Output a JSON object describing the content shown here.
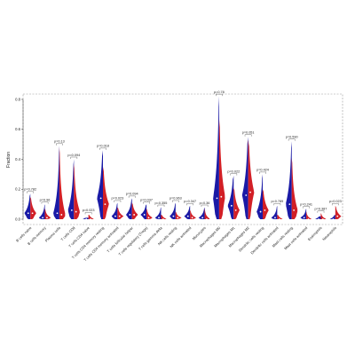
{
  "chart_data": {
    "type": "violin",
    "ylabel": "Fraction",
    "ylim": [
      0,
      0.8
    ],
    "yticks": [
      "0.0",
      "0.2",
      "0.4",
      "0.6",
      "0.8"
    ],
    "colors": {
      "group_a": "#1a1aa6",
      "group_b": "#d21f26"
    },
    "categories": [
      "B cells naive",
      "B cells memory",
      "Plasma cells",
      "T cells CD8",
      "T cells CD4 naive",
      "T cells CD4 memory resting",
      "T cells CD4 memory activated",
      "T cells follicular helper",
      "T cells regulatory (Tregs)",
      "T cells gamma delta",
      "NK cells resting",
      "NK cells activated",
      "Monocytes",
      "Macrophages M0",
      "Macrophages M1",
      "Macrophages M2",
      "Dendritic cells resting",
      "Dendritic cells activated",
      "Mast cells resting",
      "Mast cells activated",
      "Eosinophils",
      "Neutrophils"
    ],
    "pvalues": [
      "p=0.782",
      "p=0.96",
      "p=0.13",
      "p=0.094",
      "p=0.023",
      "p=0.018",
      "p=0.023",
      "p=0.094",
      "p=0.037",
      "p=0.355",
      "p=0.963",
      "p=0.347",
      "p=0.36",
      "p=0.78",
      "p=0.022",
      "p=0.051",
      "p=0.424",
      "p=0.789",
      "p=0.590",
      "p=0.241",
      "p=0.387",
      "p=0.023"
    ],
    "series": [
      {
        "max": [
          0.17,
          0.1,
          0.49,
          0.4,
          0.01,
          0.46,
          0.11,
          0.14,
          0.1,
          0.08,
          0.11,
          0.09,
          0.08,
          0.82,
          0.29,
          0.55,
          0.3,
          0.09,
          0.52,
          0.07,
          0.02,
          0.03
        ],
        "median": [
          0.04,
          0.01,
          0.04,
          0.06,
          0.0,
          0.14,
          0.02,
          0.03,
          0.03,
          0.01,
          0.02,
          0.02,
          0.01,
          0.14,
          0.09,
          0.16,
          0.05,
          0.01,
          0.1,
          0.01,
          0.0,
          0.0
        ]
      },
      {
        "max": [
          0.15,
          0.07,
          0.48,
          0.37,
          0.03,
          0.35,
          0.08,
          0.11,
          0.07,
          0.03,
          0.05,
          0.06,
          0.07,
          0.67,
          0.21,
          0.53,
          0.2,
          0.03,
          0.41,
          0.05,
          0.04,
          0.09
        ],
        "median": [
          0.04,
          0.01,
          0.03,
          0.05,
          0.0,
          0.1,
          0.02,
          0.03,
          0.01,
          0.0,
          0.01,
          0.01,
          0.0,
          0.15,
          0.06,
          0.18,
          0.06,
          0.0,
          0.06,
          0.0,
          0.0,
          0.02
        ]
      }
    ]
  }
}
